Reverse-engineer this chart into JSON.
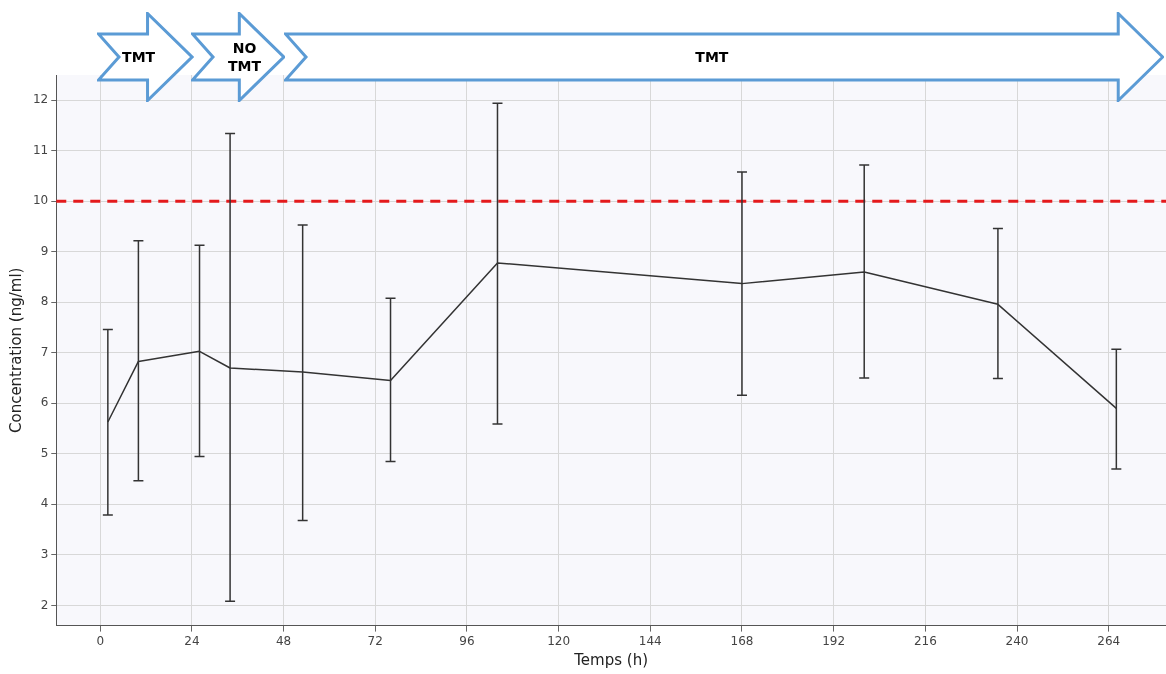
{
  "chart_data": {
    "type": "line",
    "xlabel": "Temps (h)",
    "ylabel": "Concentration (ng/ml)",
    "annotations": [
      "TMT",
      "NO TMT",
      "TMT"
    ],
    "x": [
      2,
      10,
      26,
      34,
      53,
      76,
      104,
      168,
      200,
      235,
      266
    ],
    "series": [
      {
        "color": "#333333",
        "values": [
          5.63,
          6.83,
          7.03,
          6.7,
          6.62,
          6.45,
          8.78,
          8.37,
          8.6,
          7.96,
          5.9
        ],
        "errors": [
          [
            3.79,
            7.46
          ],
          [
            4.47,
            9.22
          ],
          [
            4.95,
            9.13
          ],
          [
            2.08,
            11.34
          ],
          [
            3.68,
            9.53
          ],
          [
            4.85,
            8.08
          ],
          [
            5.59,
            11.94
          ],
          [
            6.16,
            10.58
          ],
          [
            6.5,
            10.72
          ],
          [
            6.49,
            9.46
          ],
          [
            4.7,
            7.07
          ]
        ]
      }
    ],
    "xlim": [
      -11.5,
      279
    ],
    "ylim": [
      1.6,
      12.5
    ],
    "xticks": [
      0,
      24,
      48,
      72,
      96,
      120,
      144,
      168,
      192,
      216,
      240,
      264
    ],
    "yticks": [
      2,
      3,
      4,
      5,
      6,
      7,
      8,
      9,
      10,
      11,
      12
    ],
    "ref_lines": [
      {
        "axis": "y",
        "value": 10,
        "color": "#e41a1c",
        "line_style": "dashed"
      }
    ],
    "grid": true,
    "legend": false,
    "marker": "none",
    "line_style": "solid"
  }
}
